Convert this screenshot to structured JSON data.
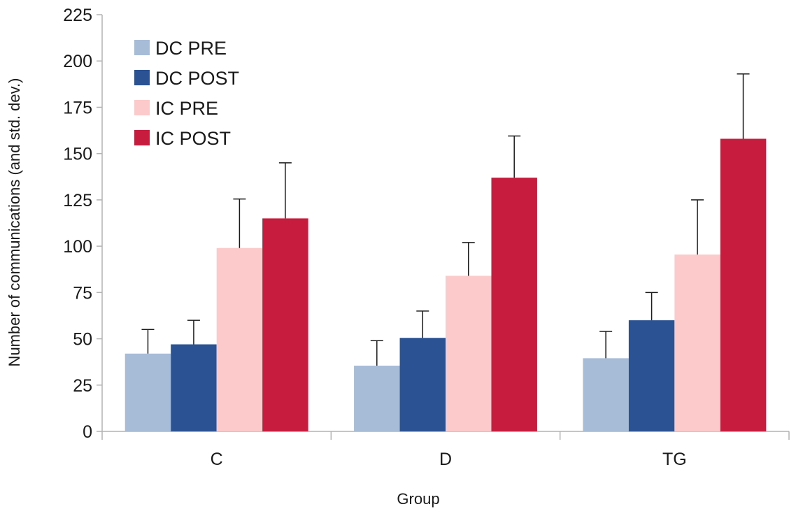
{
  "chart_data": {
    "type": "bar",
    "title": "",
    "xlabel": "Group",
    "ylabel": "Number of communications (and std. dev.)",
    "ylim": [
      0,
      225
    ],
    "yticks": [
      0,
      25,
      50,
      75,
      100,
      125,
      150,
      175,
      200,
      225
    ],
    "ytick_labels": [
      "0",
      "25",
      "50",
      "75",
      "100",
      "125",
      "150",
      "175",
      "200",
      "225"
    ],
    "grid": false,
    "legend_position": "top-left",
    "categories": [
      "C",
      "D",
      "TG"
    ],
    "series": [
      {
        "name": "DC PRE",
        "color": "#a7bcd6",
        "values": [
          42,
          35.5,
          39.5
        ],
        "errors": [
          13,
          13.5,
          14.5
        ]
      },
      {
        "name": "DC POST",
        "color": "#2b5394",
        "values": [
          47,
          50.5,
          60
        ],
        "errors": [
          13,
          14.5,
          15
        ]
      },
      {
        "name": "IC PRE",
        "color": "#fccaca",
        "values": [
          99,
          84,
          95.5
        ],
        "errors": [
          26.5,
          18,
          29.5
        ]
      },
      {
        "name": "IC POST",
        "color": "#c81c3e",
        "values": [
          115,
          137,
          158
        ],
        "errors": [
          30,
          22.5,
          35
        ]
      }
    ]
  }
}
